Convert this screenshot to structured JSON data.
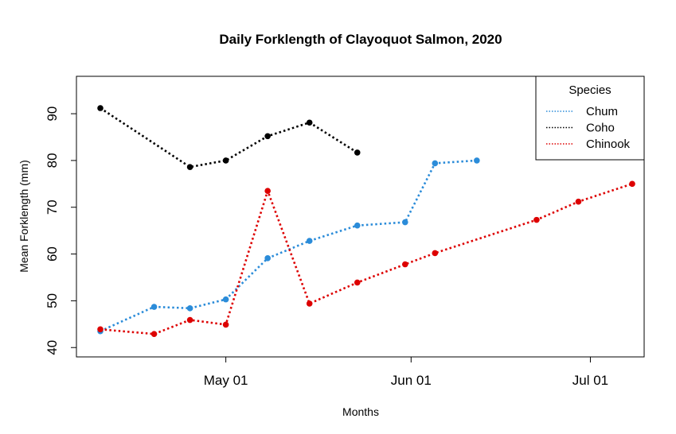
{
  "chart_data": {
    "type": "line",
    "title": "Daily Forklength of Clayoquot Salmon, 2020",
    "xlabel": "Months",
    "ylabel": "Mean Forklength (mm)",
    "x_is_date": true,
    "xlim": [
      "2020-04-06",
      "2020-07-10"
    ],
    "ylim": [
      38,
      98
    ],
    "x_ticks": [
      {
        "date": "2020-05-01",
        "label": "May 01"
      },
      {
        "date": "2020-06-01",
        "label": "Jun 01"
      },
      {
        "date": "2020-07-01",
        "label": "Jul 01"
      }
    ],
    "y_ticks": [
      40,
      50,
      60,
      70,
      80,
      90
    ],
    "grid": false,
    "legend": {
      "title": "Species",
      "position": "top-right"
    },
    "series": [
      {
        "name": "Chum",
        "color": "#2b8cd9",
        "points": [
          {
            "x": "2020-04-10",
            "y": 43.5
          },
          {
            "x": "2020-04-19",
            "y": 48.7
          },
          {
            "x": "2020-04-25",
            "y": 48.4
          },
          {
            "x": "2020-05-01",
            "y": 50.3
          },
          {
            "x": "2020-05-08",
            "y": 59.1
          },
          {
            "x": "2020-05-15",
            "y": 62.8
          },
          {
            "x": "2020-05-23",
            "y": 66.1
          },
          {
            "x": "2020-05-31",
            "y": 66.8
          },
          {
            "x": "2020-06-05",
            "y": 79.4
          },
          {
            "x": "2020-06-12",
            "y": 80.0
          }
        ]
      },
      {
        "name": "Coho",
        "color": "#000000",
        "points": [
          {
            "x": "2020-04-10",
            "y": 91.2
          },
          {
            "x": "2020-04-25",
            "y": 78.6
          },
          {
            "x": "2020-05-01",
            "y": 80.0
          },
          {
            "x": "2020-05-08",
            "y": 85.2
          },
          {
            "x": "2020-05-15",
            "y": 88.1
          },
          {
            "x": "2020-05-23",
            "y": 81.7
          }
        ]
      },
      {
        "name": "Chinook",
        "color": "#dd0000",
        "points": [
          {
            "x": "2020-04-10",
            "y": 43.9
          },
          {
            "x": "2020-04-19",
            "y": 42.9
          },
          {
            "x": "2020-04-25",
            "y": 45.9
          },
          {
            "x": "2020-05-01",
            "y": 44.9
          },
          {
            "x": "2020-05-08",
            "y": 73.5
          },
          {
            "x": "2020-05-15",
            "y": 49.4
          },
          {
            "x": "2020-05-23",
            "y": 53.9
          },
          {
            "x": "2020-05-31",
            "y": 57.8
          },
          {
            "x": "2020-06-05",
            "y": 60.2
          },
          {
            "x": "2020-06-22",
            "y": 67.3
          },
          {
            "x": "2020-06-29",
            "y": 71.2
          },
          {
            "x": "2020-07-08",
            "y": 75.0
          }
        ]
      }
    ]
  }
}
